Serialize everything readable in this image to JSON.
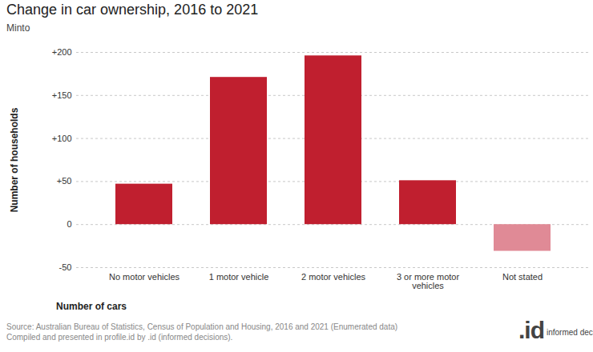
{
  "chart_data": {
    "type": "bar",
    "title": "Change in car ownership, 2016 to 2021",
    "subtitle": "Minto",
    "x_label": "Number of cars",
    "y_label": "Number of households",
    "categories": [
      "No motor vehicles",
      "1 motor vehicle",
      "2 motor vehicles",
      "3 or more motor vehicles",
      "Not stated"
    ],
    "values": [
      47,
      171,
      196,
      51,
      -31
    ],
    "colors": [
      "#c01f2f",
      "#c01f2f",
      "#c01f2f",
      "#c01f2f",
      "#e08a96"
    ],
    "ylim": [
      -50,
      200
    ],
    "yticks": [
      -50,
      0,
      {
        "value": 50,
        "label": "+50"
      },
      {
        "value": 100,
        "label": "+100"
      },
      {
        "value": 150,
        "label": "+150"
      },
      {
        "value": 200,
        "label": "+200"
      }
    ],
    "grid": true,
    "caption": [
      "Source: Australian Bureau of Statistics, Census of Population and Housing, 2016 and 2021 (Enumerated data)",
      "Compiled and presented in profile.id by .id (informed decisions)."
    ],
    "logo": [
      ".id",
      "informed decisions"
    ]
  }
}
